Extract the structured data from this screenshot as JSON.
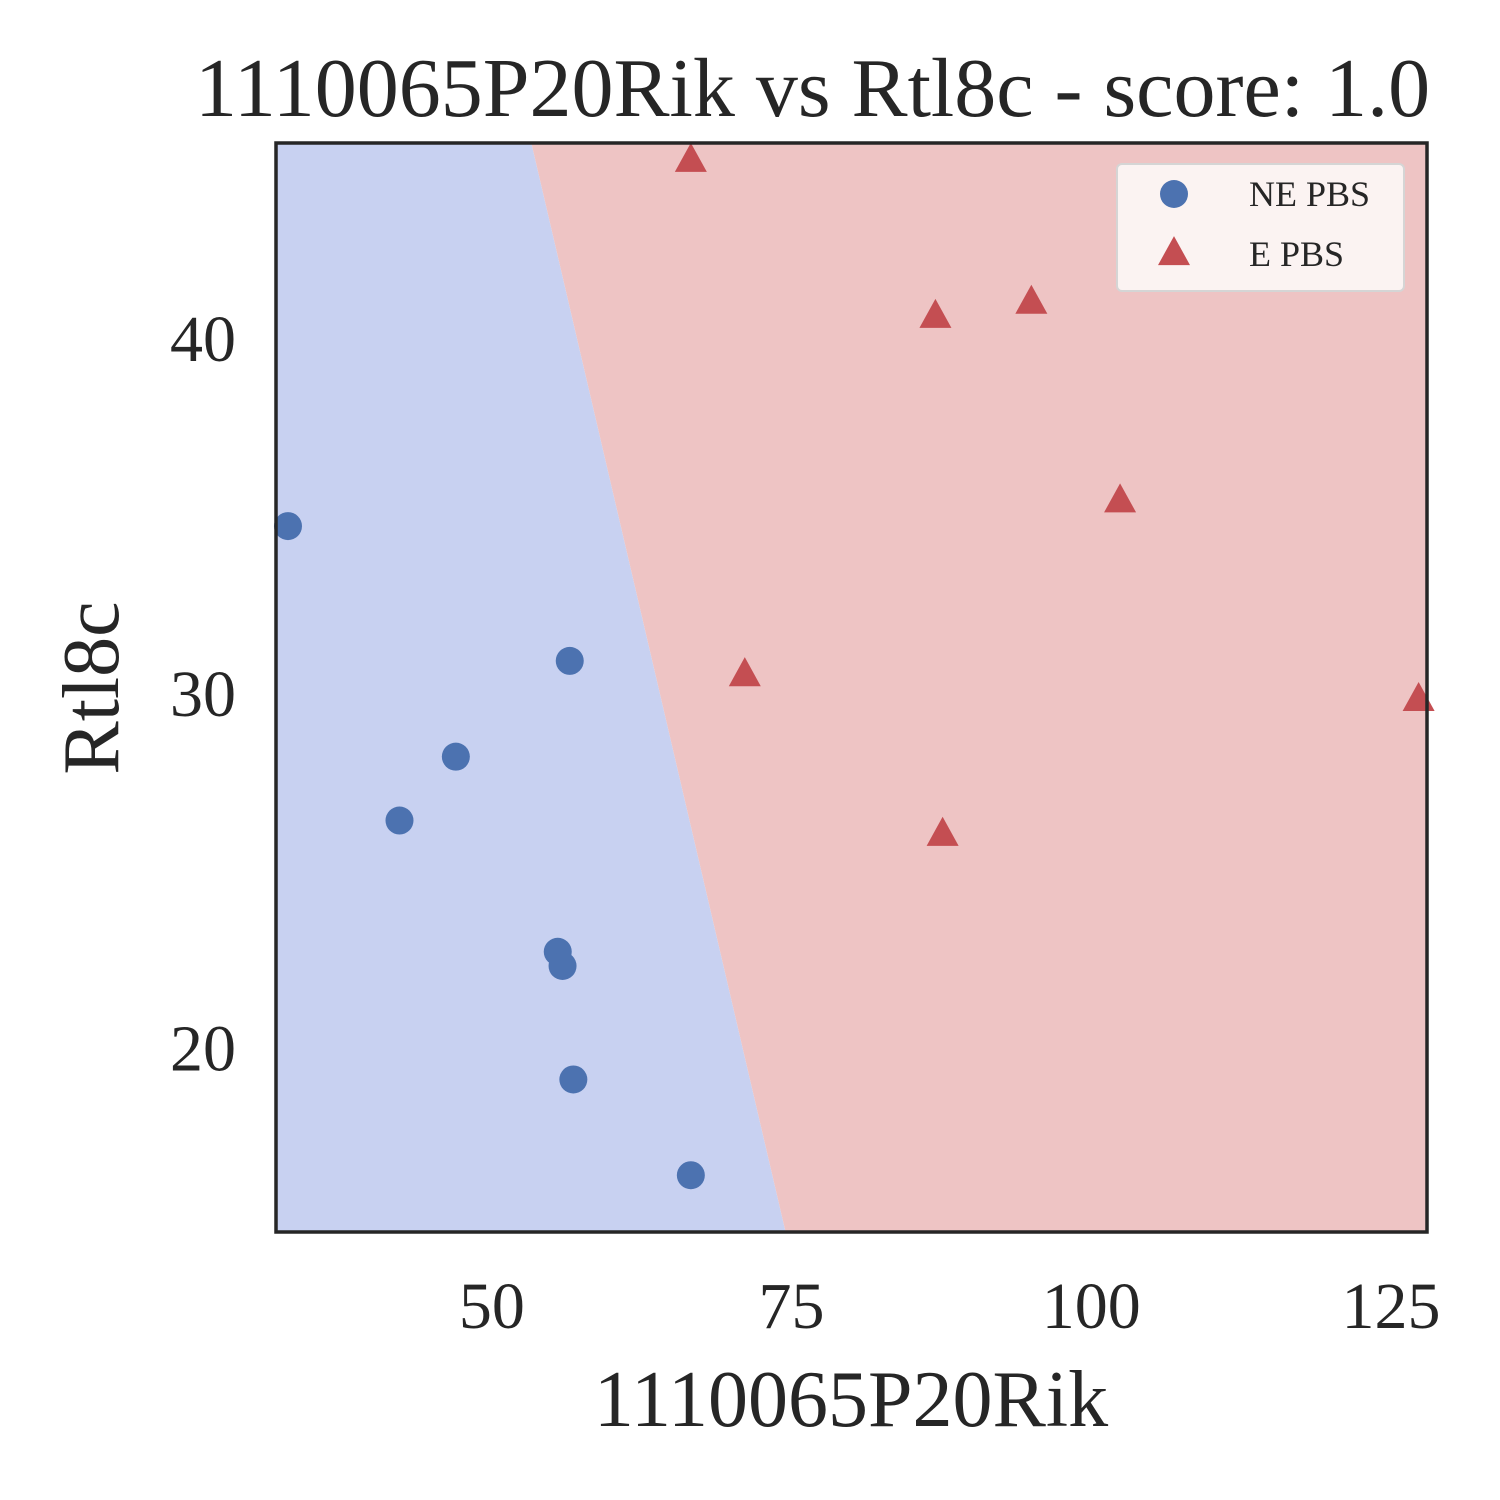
{
  "chart_data": {
    "type": "scatter",
    "title": "1110065P20Rik vs Rtl8c - score: 1.0",
    "xlabel": "1110065P20Rik",
    "ylabel": "Rtl8c",
    "xlim": [
      32.0,
      128.0
    ],
    "ylim": [
      14.8,
      45.5
    ],
    "xticks": [
      50,
      75,
      100,
      125
    ],
    "yticks": [
      20,
      30,
      40
    ],
    "grid": false,
    "legend_position": "upper right",
    "decision_boundary": {
      "points": [
        [
          53.2,
          45.5
        ],
        [
          74.6,
          14.8
        ]
      ],
      "left_class": "NE PBS",
      "right_class": "E PBS"
    },
    "series": [
      {
        "name": "NE PBS",
        "marker": "circle",
        "color": "#4c72b0",
        "region_color": "#c8d1f1",
        "points": [
          [
            33.0,
            34.7
          ],
          [
            56.5,
            30.9
          ],
          [
            47.0,
            28.2
          ],
          [
            42.3,
            26.4
          ],
          [
            55.5,
            22.7
          ],
          [
            55.9,
            22.3
          ],
          [
            56.8,
            19.1
          ],
          [
            66.6,
            16.4
          ]
        ]
      },
      {
        "name": "E PBS",
        "marker": "triangle",
        "color": "#c44e52",
        "region_color": "#eec4c4",
        "points": [
          [
            66.6,
            45.0
          ],
          [
            87.0,
            40.6
          ],
          [
            95.0,
            41.0
          ],
          [
            102.4,
            35.4
          ],
          [
            71.1,
            30.5
          ],
          [
            87.6,
            26.0
          ],
          [
            127.3,
            29.8
          ]
        ]
      }
    ]
  }
}
